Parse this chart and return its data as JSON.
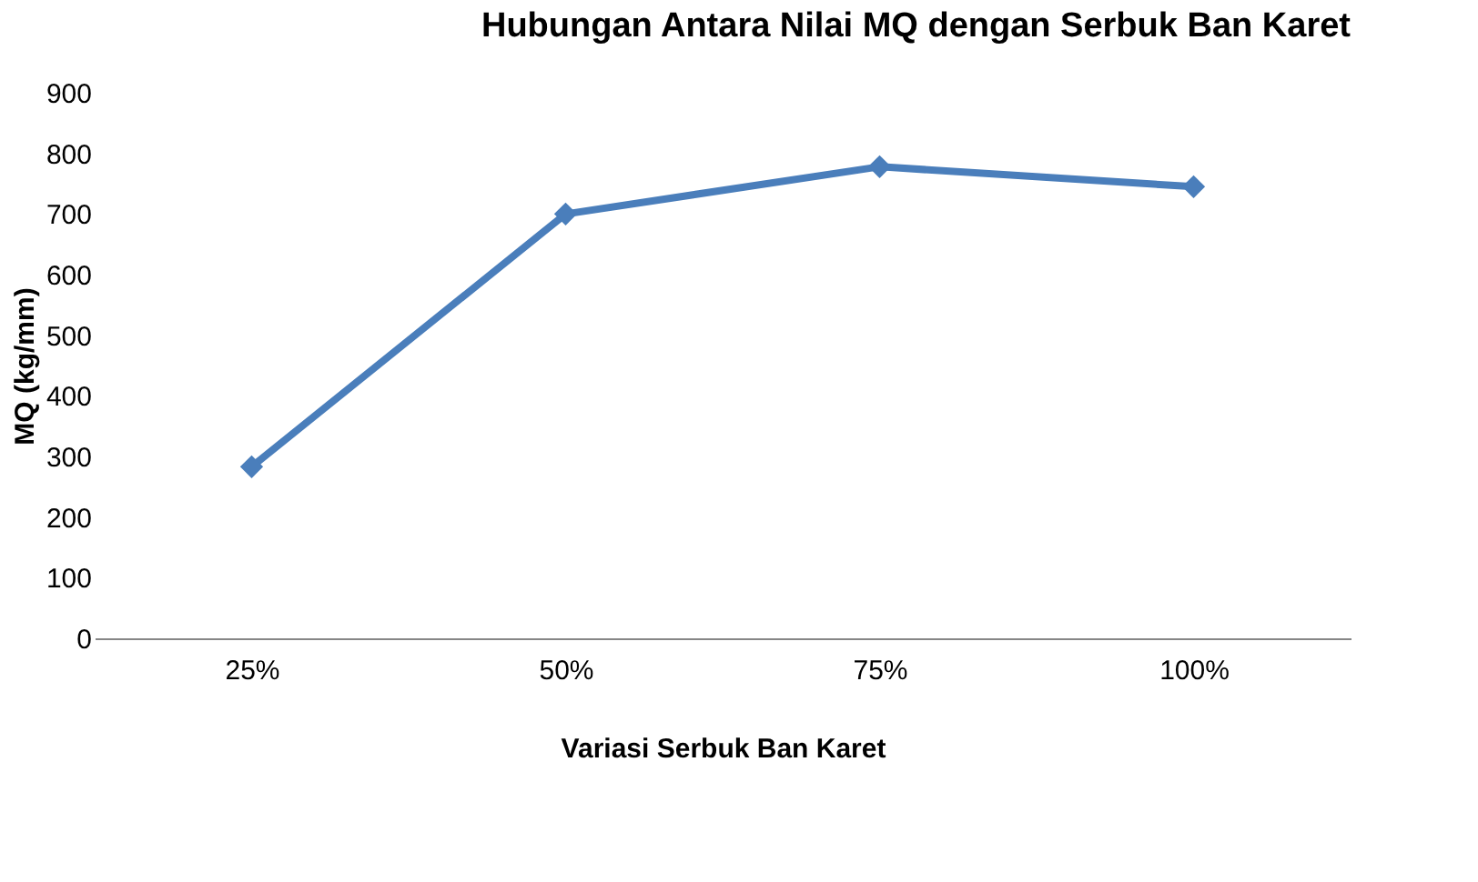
{
  "chart_data": {
    "type": "line",
    "title": "Hubungan Antara Nilai MQ dengan Serbuk Ban Karet",
    "xlabel": "Variasi  Serbuk Ban Karet",
    "ylabel": "MQ (kg/mm)",
    "categories": [
      "25%",
      "50%",
      "75%",
      "100%"
    ],
    "series": [
      {
        "color": "#4a7ebb",
        "values": [
          283,
          700,
          778,
          745
        ]
      }
    ],
    "ylim": [
      0,
      900
    ],
    "yticks": [
      0,
      100,
      200,
      300,
      400,
      500,
      600,
      700,
      800,
      900
    ],
    "grid": false,
    "legend": false,
    "marker": "diamond",
    "line_style": "solid"
  }
}
